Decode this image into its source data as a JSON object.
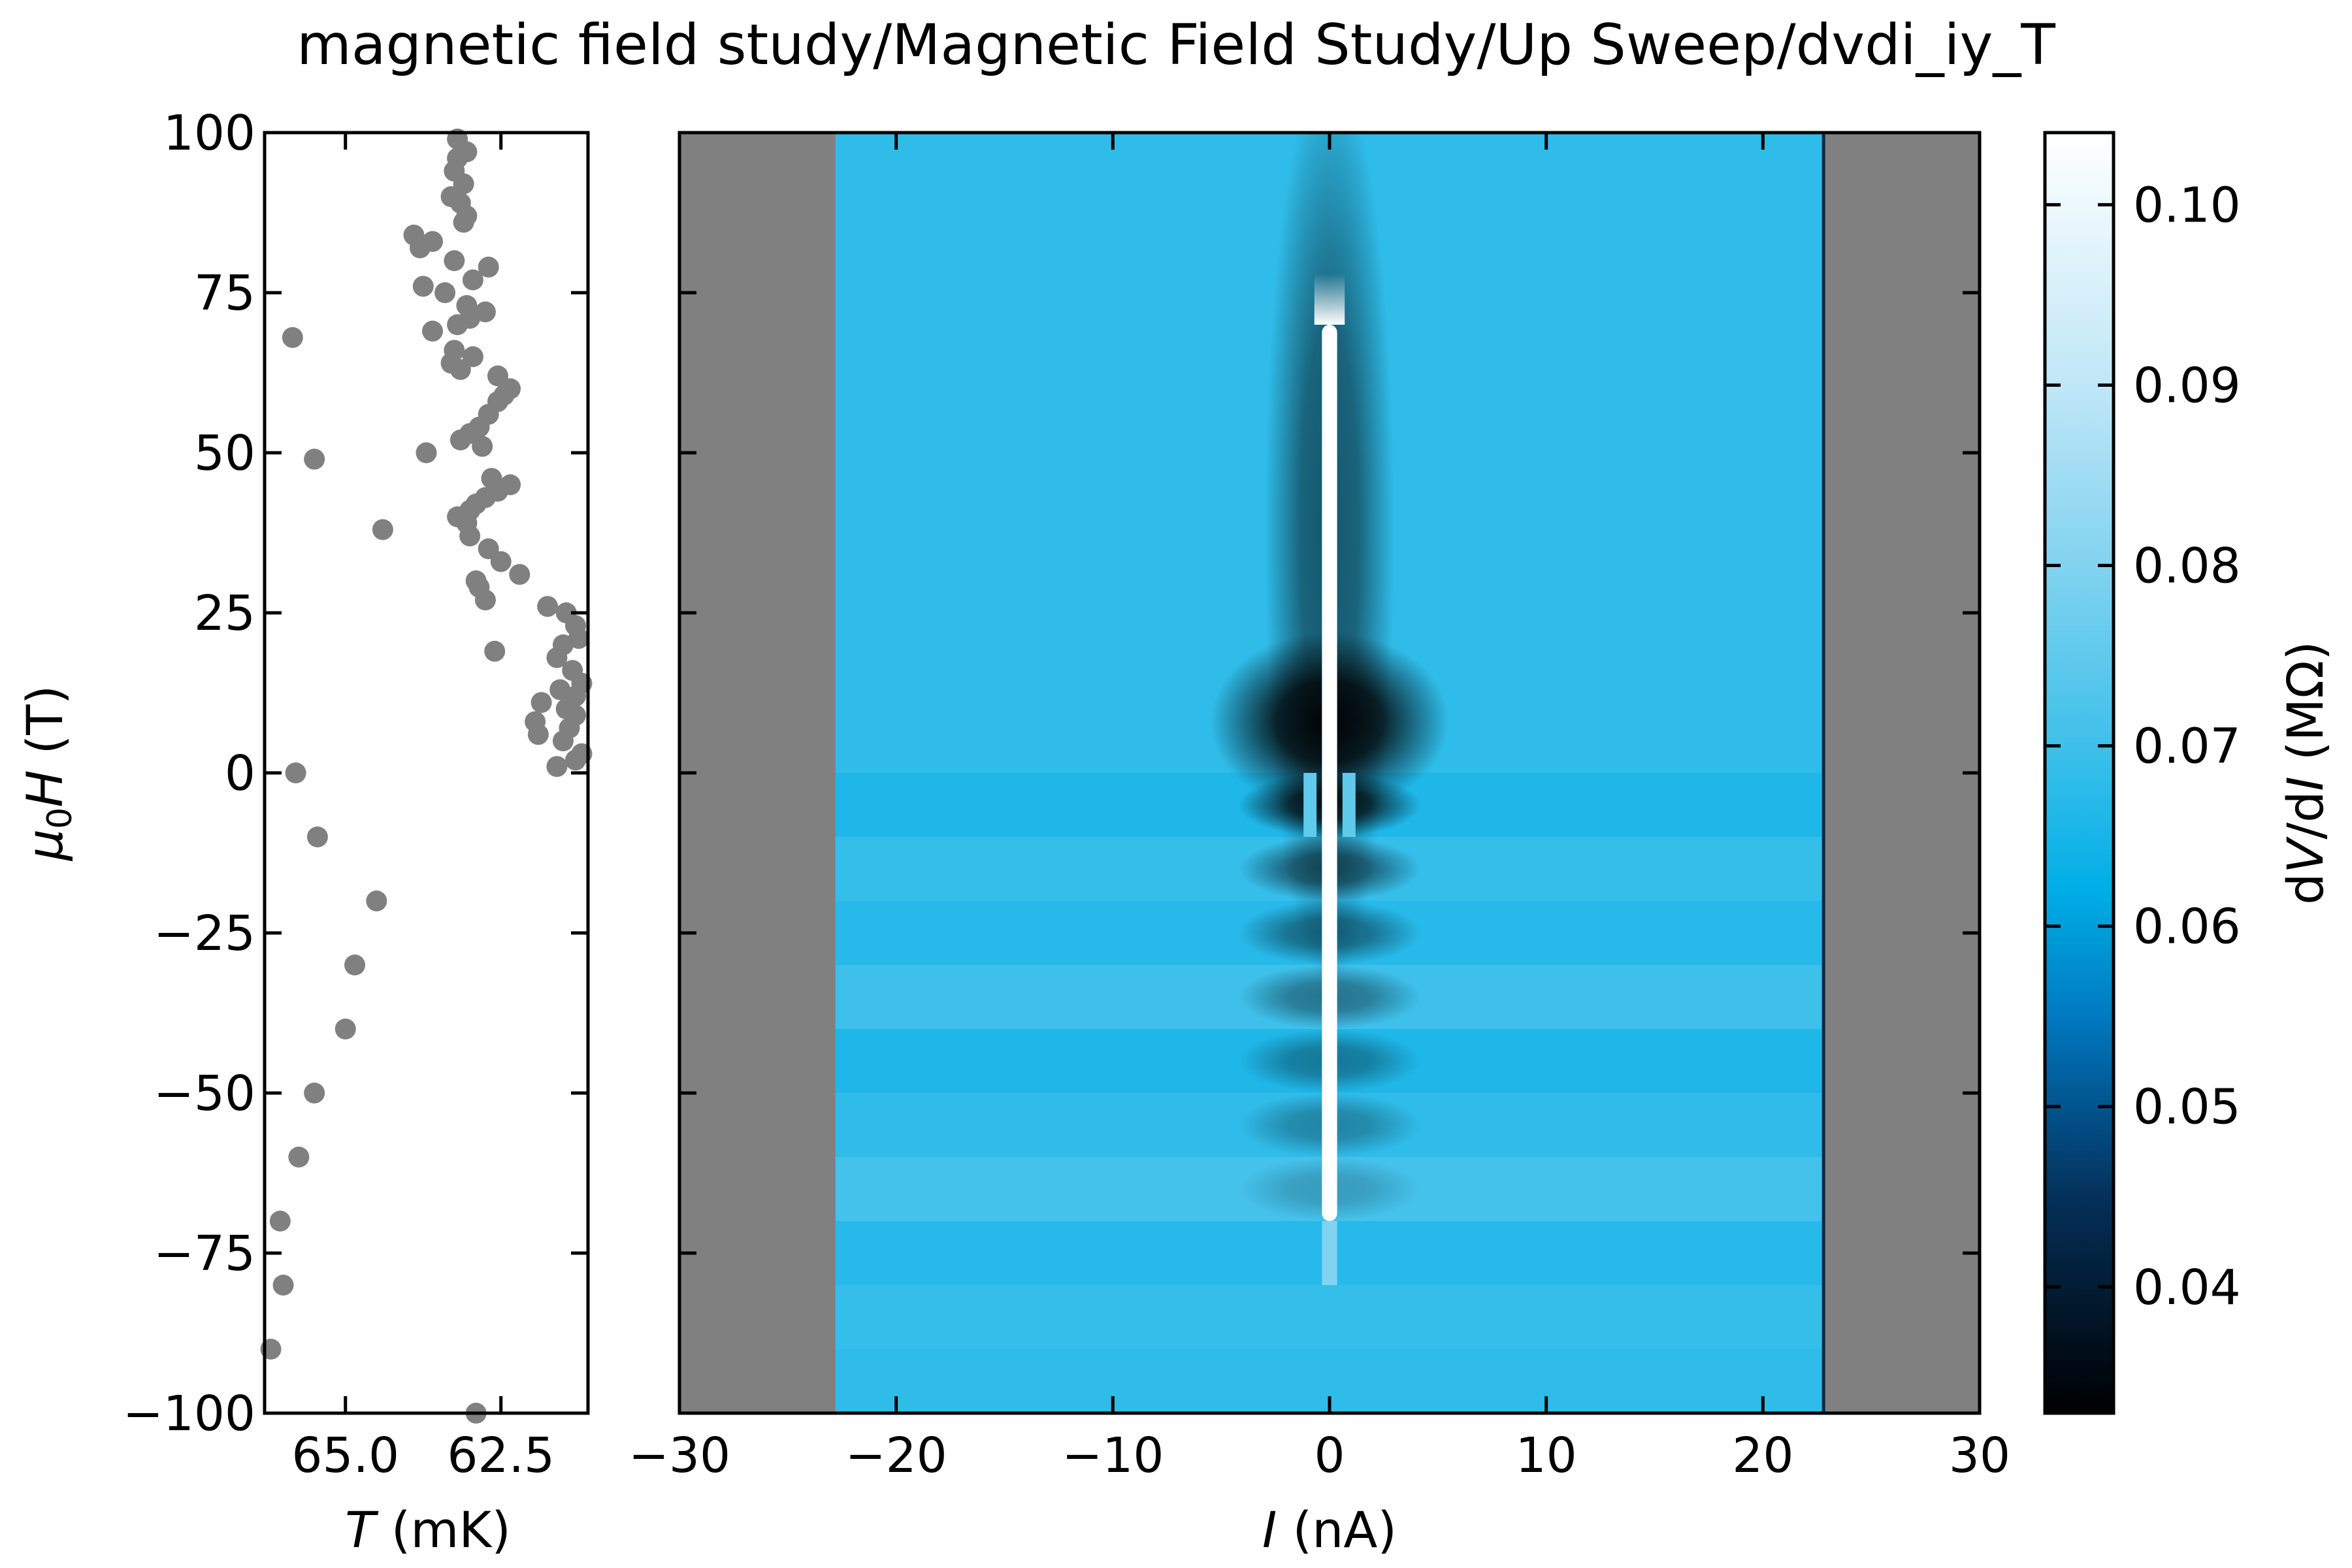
{
  "chart_data": [
    {
      "type": "scatter",
      "title": "magnetic field study/Magnetic Field Study/Up Sweep/dvdi_iy_T",
      "xlabel": {
        "italic": "T",
        "rest": " (mK)"
      },
      "ylabel": {
        "mu": "μ",
        "sub": "0",
        "italic": "H",
        "rest": " (T)"
      },
      "xlim": [
        66.3,
        61.1
      ],
      "ylim": [
        -100,
        100
      ],
      "xticks": [
        65.0,
        62.5
      ],
      "xtick_labels": [
        "65.0",
        "62.5"
      ],
      "yticks": [
        -100,
        -75,
        -50,
        -25,
        0,
        25,
        50,
        75,
        100
      ],
      "ytick_labels": [
        "−100",
        "−75",
        "−50",
        "−25",
        "0",
        "25",
        "50",
        "75",
        "100"
      ],
      "marker_color": "#808080",
      "points": [
        {
          "T": 62.9,
          "B": -100
        },
        {
          "T": 66.2,
          "B": -90
        },
        {
          "T": 66.0,
          "B": -80
        },
        {
          "T": 66.05,
          "B": -70
        },
        {
          "T": 65.75,
          "B": -60
        },
        {
          "T": 65.5,
          "B": -50
        },
        {
          "T": 65.0,
          "B": -40
        },
        {
          "T": 64.85,
          "B": -30
        },
        {
          "T": 64.5,
          "B": -20
        },
        {
          "T": 65.45,
          "B": -10
        },
        {
          "T": 65.8,
          "B": 0
        },
        {
          "T": 61.6,
          "B": 1
        },
        {
          "T": 61.3,
          "B": 2
        },
        {
          "T": 61.2,
          "B": 3
        },
        {
          "T": 61.5,
          "B": 5
        },
        {
          "T": 61.9,
          "B": 6
        },
        {
          "T": 61.4,
          "B": 7
        },
        {
          "T": 61.95,
          "B": 8
        },
        {
          "T": 61.3,
          "B": 9
        },
        {
          "T": 61.45,
          "B": 10
        },
        {
          "T": 61.85,
          "B": 11
        },
        {
          "T": 61.3,
          "B": 12
        },
        {
          "T": 61.55,
          "B": 13
        },
        {
          "T": 61.2,
          "B": 14
        },
        {
          "T": 61.35,
          "B": 16
        },
        {
          "T": 61.6,
          "B": 18
        },
        {
          "T": 62.6,
          "B": 19
        },
        {
          "T": 61.5,
          "B": 20
        },
        {
          "T": 61.25,
          "B": 21
        },
        {
          "T": 61.3,
          "B": 23
        },
        {
          "T": 61.45,
          "B": 25
        },
        {
          "T": 61.75,
          "B": 26
        },
        {
          "T": 62.75,
          "B": 27
        },
        {
          "T": 62.85,
          "B": 29
        },
        {
          "T": 62.9,
          "B": 30
        },
        {
          "T": 62.2,
          "B": 31
        },
        {
          "T": 62.5,
          "B": 33
        },
        {
          "T": 62.7,
          "B": 35
        },
        {
          "T": 63.0,
          "B": 37
        },
        {
          "T": 64.4,
          "B": 38
        },
        {
          "T": 63.05,
          "B": 39
        },
        {
          "T": 63.2,
          "B": 40
        },
        {
          "T": 63.0,
          "B": 41
        },
        {
          "T": 62.9,
          "B": 42
        },
        {
          "T": 62.75,
          "B": 43
        },
        {
          "T": 62.55,
          "B": 44
        },
        {
          "T": 62.35,
          "B": 45
        },
        {
          "T": 62.65,
          "B": 46
        },
        {
          "T": 65.5,
          "B": 49
        },
        {
          "T": 63.7,
          "B": 50
        },
        {
          "T": 62.8,
          "B": 51
        },
        {
          "T": 63.15,
          "B": 52
        },
        {
          "T": 63.0,
          "B": 53
        },
        {
          "T": 62.85,
          "B": 54
        },
        {
          "T": 62.7,
          "B": 56
        },
        {
          "T": 62.55,
          "B": 58
        },
        {
          "T": 62.45,
          "B": 59
        },
        {
          "T": 62.35,
          "B": 60
        },
        {
          "T": 62.55,
          "B": 62
        },
        {
          "T": 63.15,
          "B": 63
        },
        {
          "T": 63.3,
          "B": 64
        },
        {
          "T": 62.95,
          "B": 65
        },
        {
          "T": 63.25,
          "B": 66
        },
        {
          "T": 65.85,
          "B": 68
        },
        {
          "T": 63.6,
          "B": 69
        },
        {
          "T": 63.2,
          "B": 70
        },
        {
          "T": 63.0,
          "B": 71
        },
        {
          "T": 62.75,
          "B": 72
        },
        {
          "T": 63.05,
          "B": 73
        },
        {
          "T": 63.4,
          "B": 75
        },
        {
          "T": 63.75,
          "B": 76
        },
        {
          "T": 62.95,
          "B": 77
        },
        {
          "T": 62.7,
          "B": 79
        },
        {
          "T": 63.25,
          "B": 80
        },
        {
          "T": 63.8,
          "B": 82
        },
        {
          "T": 63.6,
          "B": 83
        },
        {
          "T": 63.9,
          "B": 84
        },
        {
          "T": 63.1,
          "B": 86
        },
        {
          "T": 63.05,
          "B": 87
        },
        {
          "T": 63.15,
          "B": 89
        },
        {
          "T": 63.3,
          "B": 90
        },
        {
          "T": 63.1,
          "B": 92
        },
        {
          "T": 63.25,
          "B": 94
        },
        {
          "T": 63.2,
          "B": 96
        },
        {
          "T": 63.05,
          "B": 97
        },
        {
          "T": 63.2,
          "B": 99
        }
      ]
    },
    {
      "type": "heatmap",
      "xlabel": {
        "italic": "I",
        "rest": " (nA)"
      },
      "xlim": [
        -30,
        30
      ],
      "ylim": [
        -100,
        100
      ],
      "xticks": [
        -30,
        -20,
        -10,
        0,
        10,
        20,
        30
      ],
      "xtick_labels": [
        "−30",
        "−20",
        "−10",
        "0",
        "10",
        "20",
        "30"
      ],
      "yticks": [
        -100,
        -75,
        -50,
        -25,
        0,
        25,
        50,
        75,
        100
      ],
      "data_range_I": [
        -22.8,
        22.8
      ],
      "nan_color": "#808080",
      "colorbar": {
        "label": {
          "pre": "d",
          "italic1": "V",
          "mid": "/d",
          "italic2": "I",
          "rest": " (MΩ)"
        },
        "range": [
          0.033,
          0.104
        ],
        "ticks": [
          0.04,
          0.05,
          0.06,
          0.07,
          0.08,
          0.09,
          0.1
        ],
        "tick_labels": [
          "0.04",
          "0.05",
          "0.06",
          "0.07",
          "0.08",
          "0.09",
          "0.10"
        ],
        "colormap_stops": [
          {
            "v": 0.033,
            "color": "#000000"
          },
          {
            "v": 0.045,
            "color": "#04305a"
          },
          {
            "v": 0.055,
            "color": "#0079c1"
          },
          {
            "v": 0.062,
            "color": "#00aee6"
          },
          {
            "v": 0.07,
            "color": "#3ec0ea"
          },
          {
            "v": 0.08,
            "color": "#82d3f0"
          },
          {
            "v": 0.09,
            "color": "#bfe7f7"
          },
          {
            "v": 0.104,
            "color": "#ffffff"
          }
        ]
      },
      "background_value": 0.068,
      "central_peak_value": 0.104,
      "dip_value": 0.033
    }
  ]
}
